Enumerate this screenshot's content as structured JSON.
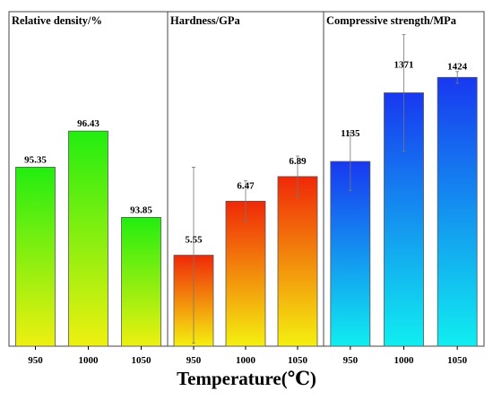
{
  "chart_data": {
    "type": "bar",
    "xlabel": "Temperature(℃)",
    "panels": [
      {
        "title": "Relative density/%",
        "categories": [
          "950",
          "1000",
          "1050"
        ],
        "values": [
          95.35,
          96.43,
          93.85
        ],
        "value_labels": [
          "95.35",
          "96.43",
          "93.85"
        ],
        "errors": [
          0,
          0,
          0
        ],
        "ylim": [
          90,
          100
        ],
        "gradient": {
          "top": "#22ee10",
          "bottom": "#eef010"
        }
      },
      {
        "title": "Hardness/GPa",
        "categories": [
          "950",
          "1000",
          "1050"
        ],
        "values": [
          5.55,
          6.47,
          6.89
        ],
        "value_labels": [
          "5.55",
          "6.47",
          "6.89"
        ],
        "errors": [
          1.5,
          0.35,
          0.35
        ],
        "ylim": [
          4.0,
          9.7
        ],
        "gradient": {
          "top": "#f02808",
          "bottom": "#f5f010"
        }
      },
      {
        "title": "Compressive strength/MPa",
        "categories": [
          "950",
          "1000",
          "1050"
        ],
        "values": [
          1135,
          1371,
          1424
        ],
        "value_labels": [
          "1135",
          "1371",
          "1424"
        ],
        "errors": [
          100,
          200,
          20
        ],
        "ylim": [
          500,
          1650
        ],
        "gradient": {
          "top": "#1838f0",
          "bottom": "#10eef0"
        }
      }
    ]
  }
}
